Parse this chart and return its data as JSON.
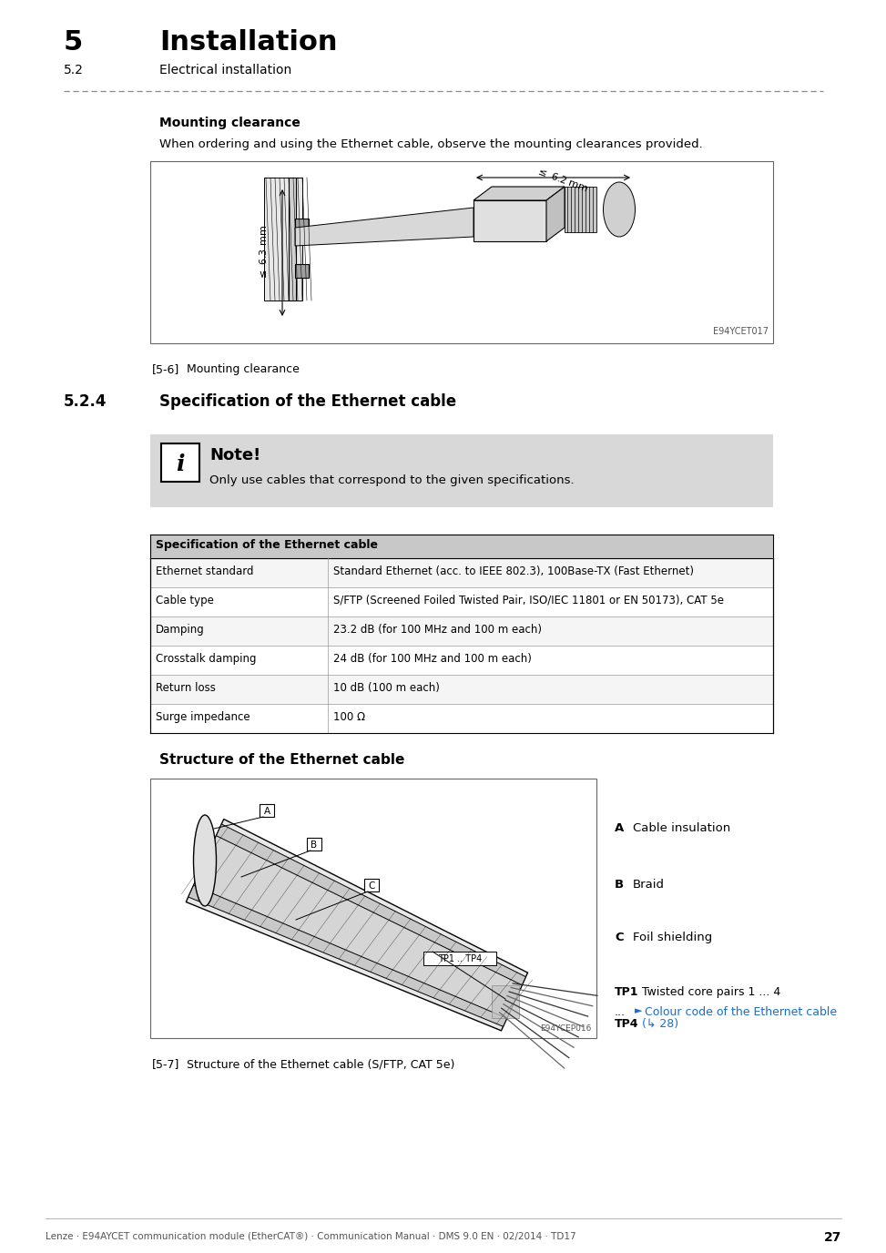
{
  "title_number": "5",
  "title_text": "Installation",
  "subtitle_number": "5.2",
  "subtitle_text": "Electrical installation",
  "section_number": "5.2.4",
  "section_title": "Specification of the Ethernet cable",
  "note_title": "Note!",
  "note_text": "Only use cables that correspond to the given specifications.",
  "mounting_clearance_label": "Mounting clearance",
  "mounting_clearance_text": "When ordering and using the Ethernet cable, observe the mounting clearances provided.",
  "fig56_label": "[5-6]",
  "fig56_caption": "Mounting clearance",
  "fig56_id": "E94YCET017",
  "table_header": "Specification of the Ethernet cable",
  "table_rows": [
    [
      "Ethernet standard",
      "Standard Ethernet (acc. to IEEE 802.3), 100Base-TX (Fast Ethernet)"
    ],
    [
      "Cable type",
      "S/FTP (Screened Foiled Twisted Pair, ISO/IEC 11801 or EN 50173), CAT 5e"
    ],
    [
      "Damping",
      "23.2 dB (for 100 MHz and 100 m each)"
    ],
    [
      "Crosstalk damping",
      "24 dB (for 100 MHz and 100 m each)"
    ],
    [
      "Return loss",
      "10 dB (100 m each)"
    ],
    [
      "Surge impedance",
      "100 Ω"
    ]
  ],
  "structure_title": "Structure of the Ethernet cable",
  "fig57_label": "[5-7]",
  "fig57_caption": "Structure of the Ethernet cable (S/FTP, CAT 5e)",
  "fig57_id": "E94YCEP016",
  "cable_labels": [
    [
      "A",
      "Cable insulation"
    ],
    [
      "B",
      "Braid"
    ],
    [
      "C",
      "Foil shielding"
    ]
  ],
  "tp_label1": "TP1",
  "tp_text1": "Twisted core pairs 1 ... 4",
  "tp_dots": "...",
  "tp_link_arrow": "►",
  "tp_link_text": "Colour code of the Ethernet cable",
  "tp_label4": "TP4",
  "tp_page_ref": "(↳ 28)",
  "footer_text": "Lenze · E94AYCET communication module (EtherCAT®) · Communication Manual · DMS 9.0 EN · 02/2014 · TD17",
  "footer_page": "27",
  "bg_color": "#ffffff",
  "table_header_bg": "#c8c8c8",
  "note_bg": "#d8d8d8",
  "text_color": "#000000",
  "link_color": "#1a6dcc"
}
